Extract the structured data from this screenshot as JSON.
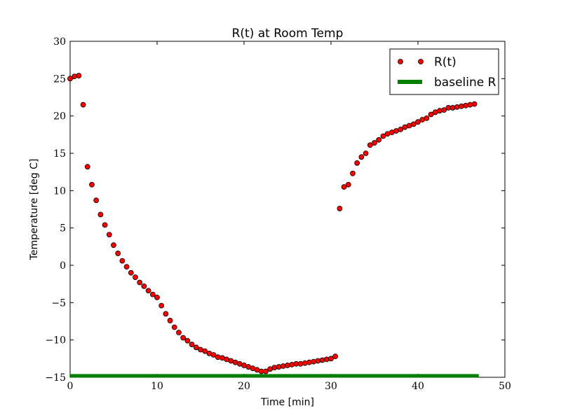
{
  "chart_data": {
    "type": "scatter",
    "title": "R(t) at Room Temp",
    "xlabel": "Time [min]",
    "ylabel": "Temperature [deg C]",
    "xlim": [
      0,
      50
    ],
    "ylim": [
      -15,
      30
    ],
    "xticks": [
      0,
      10,
      20,
      30,
      40,
      50
    ],
    "xtick_labels": [
      "0",
      "10",
      "20",
      "30",
      "40",
      "50"
    ],
    "yticks": [
      -15,
      -10,
      -5,
      0,
      5,
      10,
      15,
      20,
      25,
      30
    ],
    "ytick_labels": [
      "−15",
      "−10",
      "−5",
      "0",
      "5",
      "10",
      "15",
      "20",
      "25",
      "30"
    ],
    "grid": false,
    "legend": {
      "position": "top-right",
      "entries": [
        {
          "label": "R(t)",
          "kind": "marker",
          "color": "#ff0000"
        },
        {
          "label": "baseline R",
          "kind": "line",
          "color": "#008000"
        }
      ]
    },
    "series": [
      {
        "name": "R(t)",
        "kind": "scatter",
        "marker_color": "#ff0000",
        "edge_color": "#000000",
        "x": [
          0.0,
          0.5,
          1.0,
          1.5,
          2.0,
          2.5,
          3.0,
          3.5,
          4.0,
          4.5,
          5.0,
          5.5,
          6.0,
          6.5,
          7.0,
          7.5,
          8.0,
          8.5,
          9.0,
          9.5,
          10.0,
          10.5,
          11.0,
          11.5,
          12.0,
          12.5,
          13.0,
          13.5,
          14.0,
          14.5,
          15.0,
          15.5,
          16.0,
          16.5,
          17.0,
          17.5,
          18.0,
          18.5,
          19.0,
          19.5,
          20.0,
          20.5,
          21.0,
          21.5,
          22.0,
          22.5,
          23.0,
          23.5,
          24.0,
          24.5,
          25.0,
          25.5,
          26.0,
          26.5,
          27.0,
          27.5,
          28.0,
          28.5,
          29.0,
          29.5,
          30.0,
          30.5,
          31.0,
          31.5,
          32.0,
          32.5,
          33.0,
          33.5,
          34.0,
          34.5,
          35.0,
          35.5,
          36.0,
          36.5,
          37.0,
          37.5,
          38.0,
          38.5,
          39.0,
          39.5,
          40.0,
          40.5,
          41.0,
          41.5,
          42.0,
          42.5,
          43.0,
          43.5,
          44.0,
          44.5,
          45.0,
          45.5,
          46.0,
          46.5
        ],
        "y": [
          25.0,
          25.3,
          25.4,
          21.5,
          13.2,
          10.8,
          8.7,
          6.8,
          5.4,
          4.1,
          2.7,
          1.6,
          0.6,
          -0.2,
          -1.0,
          -1.6,
          -2.3,
          -2.8,
          -3.4,
          -3.9,
          -4.3,
          -5.4,
          -6.5,
          -7.4,
          -8.3,
          -9.0,
          -9.7,
          -10.1,
          -10.6,
          -11.0,
          -11.3,
          -11.5,
          -11.8,
          -12.0,
          -12.3,
          -12.4,
          -12.6,
          -12.8,
          -13.0,
          -13.2,
          -13.4,
          -13.6,
          -13.8,
          -14.0,
          -14.2,
          -14.2,
          -13.9,
          -13.7,
          -13.6,
          -13.5,
          -13.4,
          -13.3,
          -13.2,
          -13.2,
          -13.1,
          -13.0,
          -12.9,
          -12.8,
          -12.7,
          -12.6,
          -12.5,
          -12.2,
          7.6,
          10.5,
          10.8,
          12.3,
          13.7,
          14.5,
          15.0,
          16.1,
          16.4,
          16.8,
          17.3,
          17.6,
          17.8,
          18.0,
          18.2,
          18.5,
          18.7,
          18.9,
          19.2,
          19.5,
          19.7,
          20.2,
          20.5,
          20.7,
          20.8,
          21.1,
          21.1,
          21.2,
          21.3,
          21.4,
          21.5,
          21.6
        ]
      },
      {
        "name": "baseline R",
        "kind": "line",
        "color": "#008000",
        "x": [
          0,
          47
        ],
        "y": [
          -14.8,
          -14.8
        ]
      }
    ]
  }
}
